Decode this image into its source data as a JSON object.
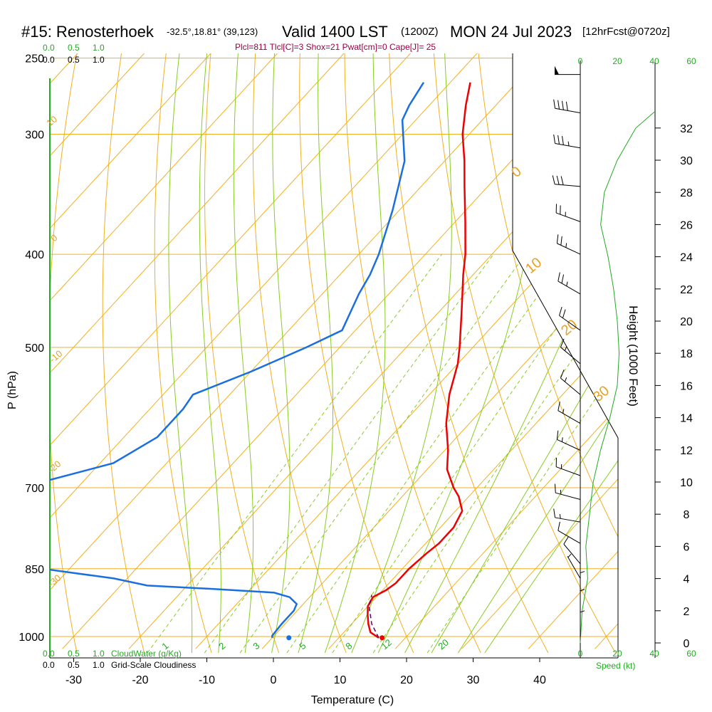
{
  "header": {
    "station": "#15: Renosterhoek",
    "coords": "-32.5°,18.81° (39,123)",
    "valid": "Valid 1400 LST",
    "zulu": "(1200Z)",
    "date": "MON 24 Jul 2023",
    "fcst": "[12hrFcst@0720z]",
    "params": "Plcl=811 Tlcl[C]=3 Shox=21 Pwat[cm]=0 Cape[J]= 25"
  },
  "labels": {
    "ylabel": "P (hPa)",
    "xlabel": "Temperature (C)",
    "heightlabel": "Height (1000 Feet)",
    "speedlabel": "Speed (kt)",
    "cloudwater": "CloudWater (g/Kg)",
    "cloudiness": "Grid-Scale Cloudiness"
  },
  "colors": {
    "temperature": "#ee0000",
    "dewpoint": "#1a6fe0",
    "isobar": "#f0b020",
    "dry_adiabat": "#f0b020",
    "moist_adiabat": "#88cc22",
    "mixing_ratio": "#88cc22",
    "parcel": "#660066",
    "wind_speed": "#22aa22"
  },
  "chart_data": {
    "type": "skew-t",
    "x_range": [
      -35,
      45
    ],
    "y_range_hPa": [
      1025,
      250
    ],
    "pressure_ticks": [
      250,
      300,
      400,
      500,
      700,
      850,
      1000
    ],
    "temp_ticks": [
      -30,
      -20,
      -10,
      0,
      10,
      20,
      30,
      40
    ],
    "cloud_scale_top": [
      "0.0",
      "0.5",
      "1.0"
    ],
    "cloud_scale_bottom_green": [
      "0.0",
      "0.5",
      "1.0"
    ],
    "cloud_scale_bottom_black": [
      "0.0",
      "0.5",
      "1.0"
    ],
    "height_ticks_kft": [
      0,
      2,
      4,
      6,
      8,
      10,
      12,
      14,
      16,
      18,
      20,
      22,
      24,
      26,
      28,
      30,
      32
    ],
    "speed_ticks_kt": [
      0,
      20,
      40,
      60
    ],
    "dry_adiabat_labels": [
      "10",
      "0",
      "-10",
      "-20",
      "-30",
      "0",
      "10",
      "20",
      "30"
    ],
    "mixing_ratio_labels": [
      "1",
      "2",
      "3",
      "5",
      "8",
      "12",
      "20"
    ],
    "temperature_profile": [
      {
        "p": 1003,
        "t": 16.0
      },
      {
        "p": 990,
        "t": 14.0
      },
      {
        "p": 970,
        "t": 12.5
      },
      {
        "p": 950,
        "t": 11.2
      },
      {
        "p": 930,
        "t": 10.0
      },
      {
        "p": 910,
        "t": 9.5
      },
      {
        "p": 895,
        "t": 10.5
      },
      {
        "p": 880,
        "t": 11.0
      },
      {
        "p": 850,
        "t": 11.0
      },
      {
        "p": 820,
        "t": 11.5
      },
      {
        "p": 800,
        "t": 12.0
      },
      {
        "p": 770,
        "t": 12.0
      },
      {
        "p": 740,
        "t": 11.0
      },
      {
        "p": 715,
        "t": 8.5
      },
      {
        "p": 700,
        "t": 6.5
      },
      {
        "p": 670,
        "t": 3.0
      },
      {
        "p": 640,
        "t": 0.5
      },
      {
        "p": 600,
        "t": -3.5
      },
      {
        "p": 560,
        "t": -7.0
      },
      {
        "p": 520,
        "t": -10.0
      },
      {
        "p": 500,
        "t": -12.0
      },
      {
        "p": 460,
        "t": -16.5
      },
      {
        "p": 420,
        "t": -21.5
      },
      {
        "p": 400,
        "t": -24.0
      },
      {
        "p": 370,
        "t": -28.5
      },
      {
        "p": 340,
        "t": -33.5
      },
      {
        "p": 320,
        "t": -37.0
      },
      {
        "p": 300,
        "t": -41.0
      },
      {
        "p": 280,
        "t": -44.5
      },
      {
        "p": 265,
        "t": -47.0
      }
    ],
    "dewpoint_profile": [
      {
        "p": 1003,
        "t": 0.0
      },
      {
        "p": 998,
        "t": -0.3
      },
      {
        "p": 970,
        "t": -0.5
      },
      {
        "p": 940,
        "t": -0.5
      },
      {
        "p": 925,
        "t": -1.0
      },
      {
        "p": 910,
        "t": -3.0
      },
      {
        "p": 900,
        "t": -6.0
      },
      {
        "p": 892,
        "t": -16.0
      },
      {
        "p": 885,
        "t": -26.0
      },
      {
        "p": 870,
        "t": -32.0
      },
      {
        "p": 860,
        "t": -38.0
      },
      {
        "p": 850,
        "t": -44.0
      },
      {
        "p": 690,
        "t": -56.0
      },
      {
        "p": 660,
        "t": -48.0
      },
      {
        "p": 620,
        "t": -45.0
      },
      {
        "p": 580,
        "t": -45.0
      },
      {
        "p": 560,
        "t": -45.5
      },
      {
        "p": 530,
        "t": -40.0
      },
      {
        "p": 500,
        "t": -35.0
      },
      {
        "p": 480,
        "t": -32.0
      },
      {
        "p": 440,
        "t": -34.5
      },
      {
        "p": 420,
        "t": -35.5
      },
      {
        "p": 400,
        "t": -37.0
      },
      {
        "p": 360,
        "t": -41.0
      },
      {
        "p": 320,
        "t": -46.0
      },
      {
        "p": 290,
        "t": -52.0
      },
      {
        "p": 280,
        "t": -53.0
      },
      {
        "p": 265,
        "t": -54.0
      }
    ],
    "parcel_profile": [
      {
        "p": 1003,
        "t": 16.0
      },
      {
        "p": 970,
        "t": 13.0
      },
      {
        "p": 930,
        "t": 10.2
      },
      {
        "p": 915,
        "t": 9.5
      },
      {
        "p": 905,
        "t": 9.0
      }
    ],
    "surface_temp": 16.5,
    "surface_dewpoint": 2.5,
    "height_profile": [
      {
        "h": 0,
        "s": 0
      },
      {
        "h": 2,
        "s": 1
      },
      {
        "h": 4,
        "s": 4
      },
      {
        "h": 6,
        "s": 3
      },
      {
        "h": 8,
        "s": 5
      },
      {
        "h": 10,
        "s": 7
      },
      {
        "h": 12,
        "s": 11
      },
      {
        "h": 14,
        "s": 16
      },
      {
        "h": 16,
        "s": 20
      },
      {
        "h": 18,
        "s": 21
      },
      {
        "h": 20,
        "s": 20
      },
      {
        "h": 22,
        "s": 18
      },
      {
        "h": 24,
        "s": 15
      },
      {
        "h": 26,
        "s": 11
      },
      {
        "h": 28,
        "s": 13
      },
      {
        "h": 30,
        "s": 20
      },
      {
        "h": 32,
        "s": 30
      },
      {
        "h": 33,
        "s": 40
      }
    ],
    "wind_barbs": [
      {
        "p": 260,
        "dir": 270,
        "spd": 50
      },
      {
        "p": 285,
        "dir": 280,
        "spd": 40
      },
      {
        "p": 310,
        "dir": 280,
        "spd": 35
      },
      {
        "p": 340,
        "dir": 275,
        "spd": 30
      },
      {
        "p": 370,
        "dir": 290,
        "spd": 25
      },
      {
        "p": 400,
        "dir": 295,
        "spd": 25
      },
      {
        "p": 440,
        "dir": 300,
        "spd": 25
      },
      {
        "p": 480,
        "dir": 305,
        "spd": 20
      },
      {
        "p": 520,
        "dir": 310,
        "spd": 15
      },
      {
        "p": 560,
        "dir": 310,
        "spd": 15
      },
      {
        "p": 600,
        "dir": 300,
        "spd": 15
      },
      {
        "p": 640,
        "dir": 295,
        "spd": 15
      },
      {
        "p": 680,
        "dir": 290,
        "spd": 15
      },
      {
        "p": 720,
        "dir": 285,
        "spd": 15
      },
      {
        "p": 760,
        "dir": 280,
        "spd": 15
      },
      {
        "p": 800,
        "dir": 300,
        "spd": 10
      },
      {
        "p": 840,
        "dir": 320,
        "spd": 10
      },
      {
        "p": 870,
        "dir": 330,
        "spd": 5
      },
      {
        "p": 910,
        "dir": 360,
        "spd": 5
      },
      {
        "p": 950,
        "dir": 360,
        "spd": 5
      },
      {
        "p": 1000,
        "dir": 360,
        "spd": 5
      }
    ]
  }
}
